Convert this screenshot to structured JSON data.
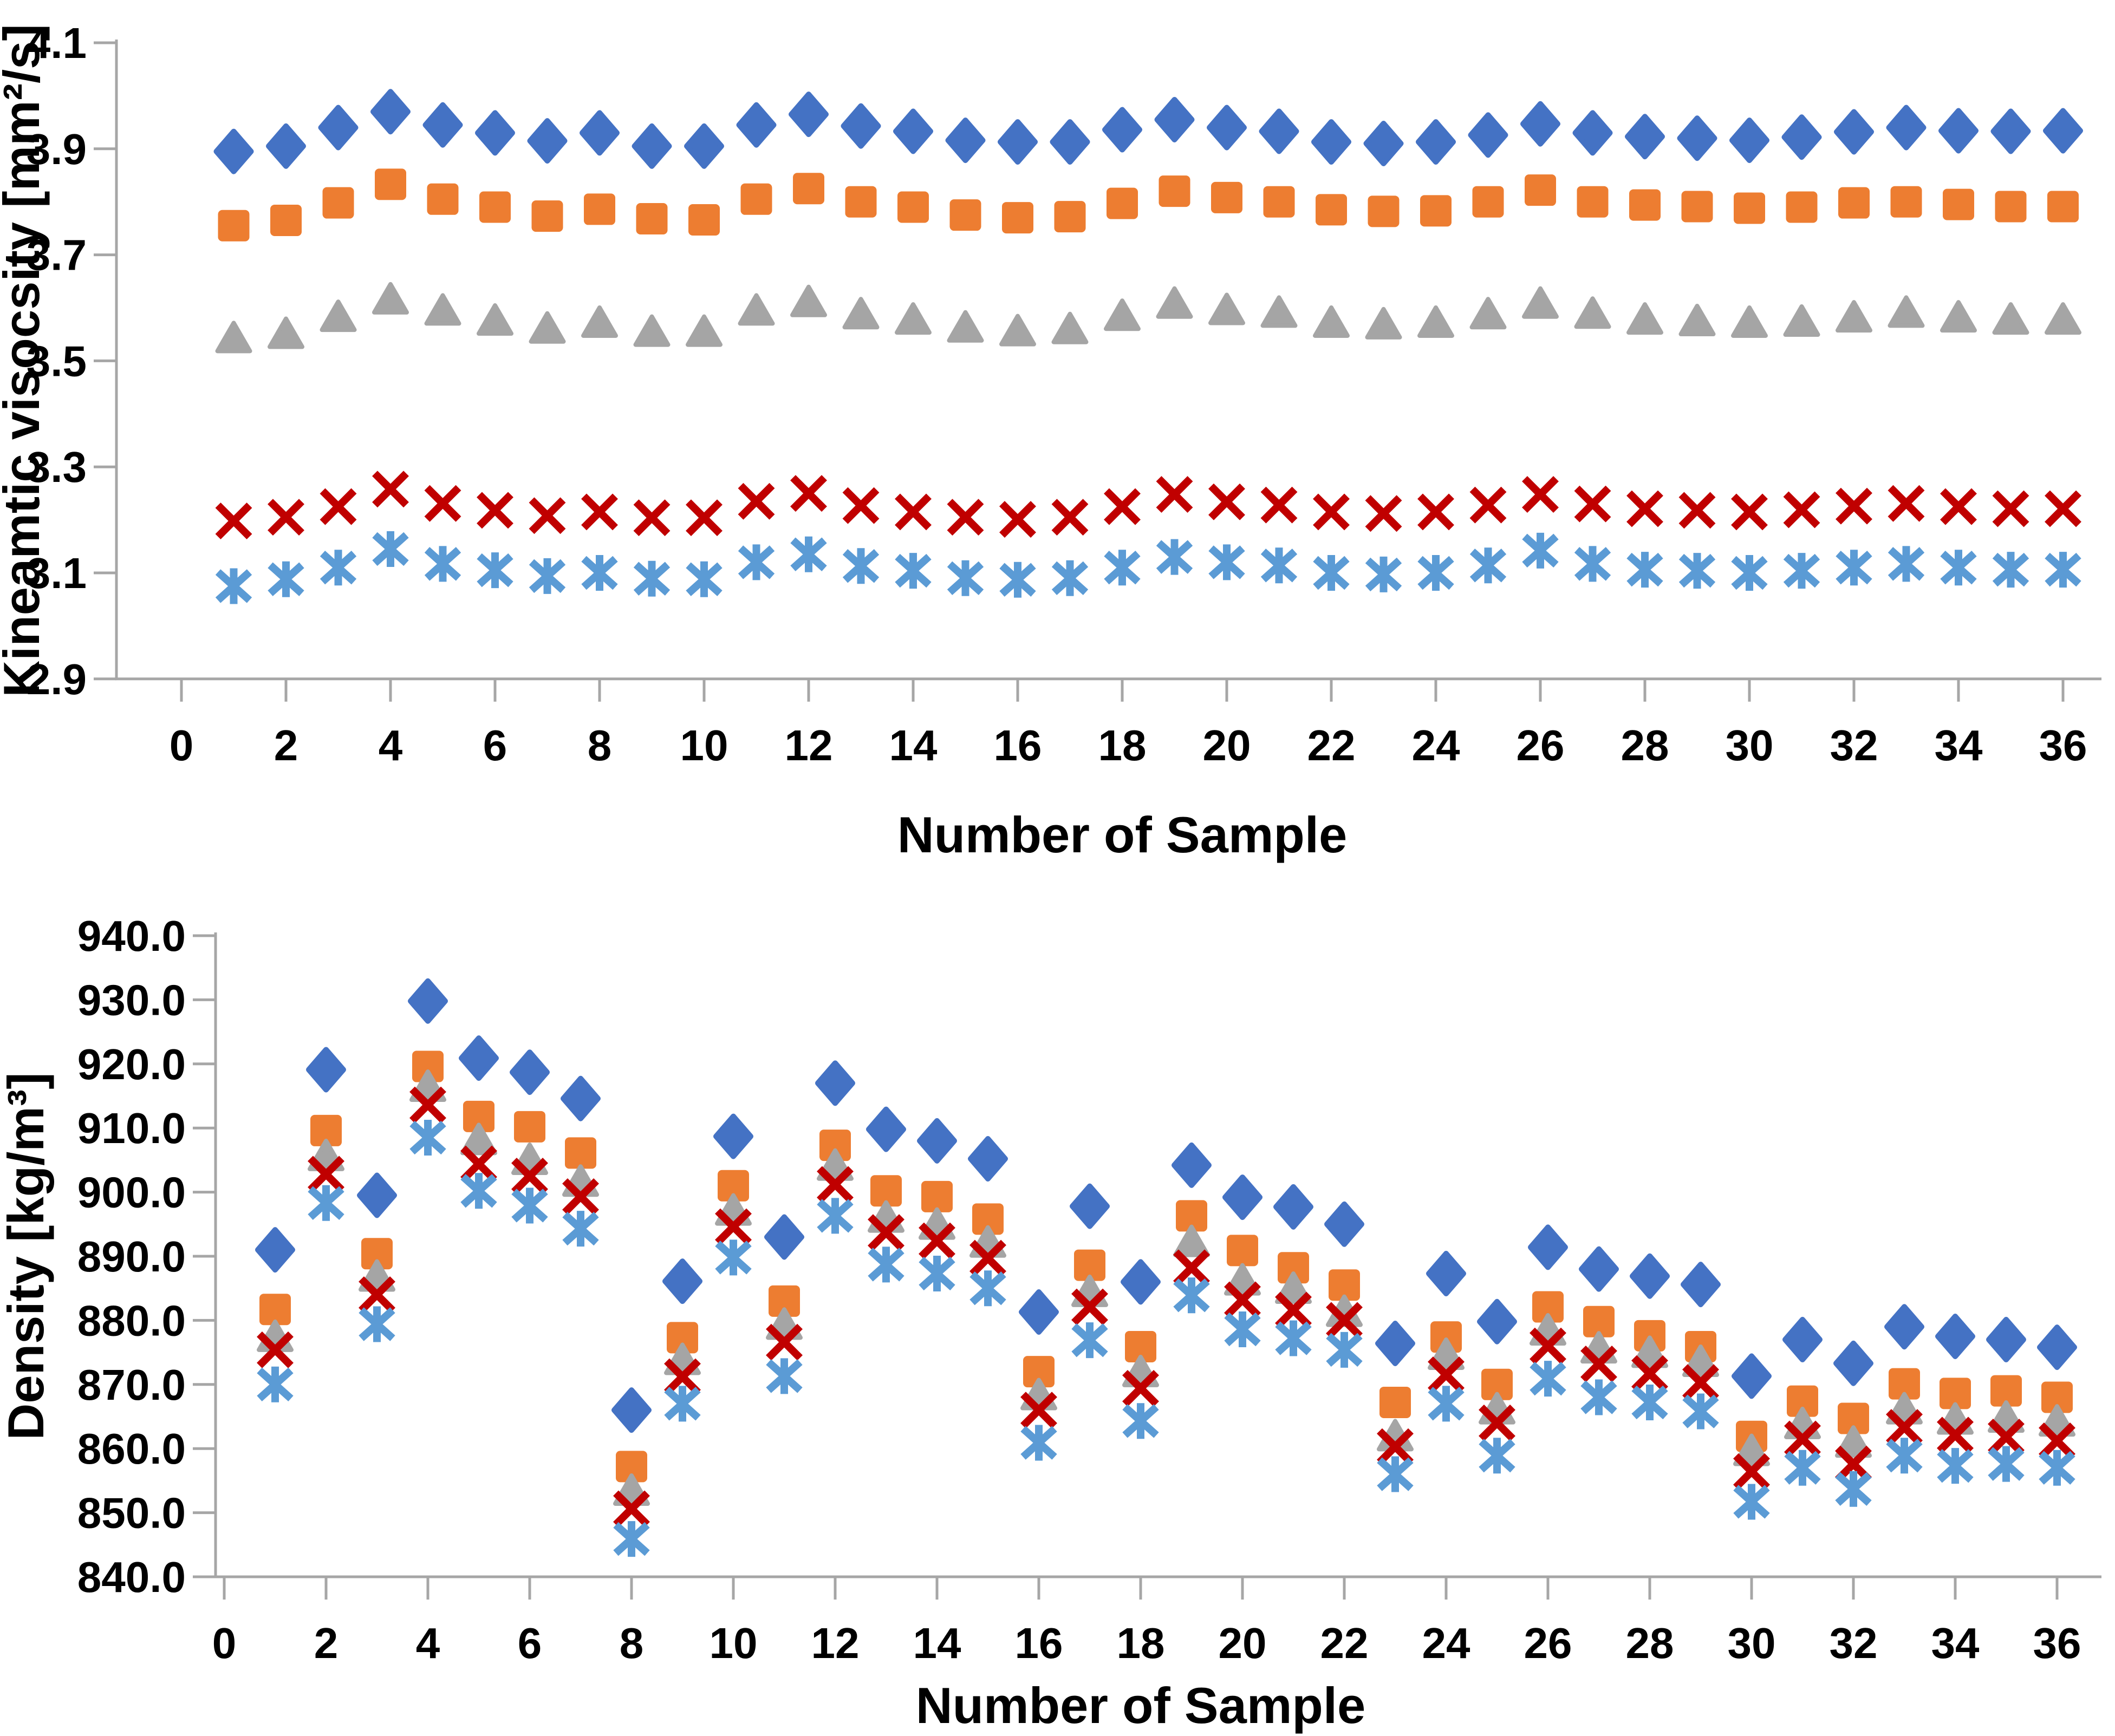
{
  "figure": {
    "background": "#FFFFFF",
    "axis_line_color": "#A6A6A6",
    "text_color": "#000000"
  },
  "chart_data": [
    {
      "type": "scatter",
      "title": "",
      "xlabel": "Number of Sample",
      "ylabel": "Kineamtic visocsity [mm²/s]",
      "xlim": [
        0,
        36
      ],
      "ylim": [
        2.9,
        4.1
      ],
      "grid": false,
      "legend": "none",
      "xtick_labels": [
        "0",
        "2",
        "4",
        "6",
        "8",
        "10",
        "12",
        "14",
        "16",
        "18",
        "20",
        "22",
        "24",
        "26",
        "28",
        "30",
        "32",
        "34",
        "36"
      ],
      "ytick_labels": [
        "4.1",
        "3.9",
        "3.7",
        "3.5",
        "3.3",
        "3.1",
        "2.9"
      ],
      "x": [
        1,
        2,
        3,
        4,
        5,
        6,
        7,
        8,
        9,
        10,
        11,
        12,
        13,
        14,
        15,
        16,
        17,
        18,
        19,
        20,
        21,
        22,
        23,
        24,
        25,
        26,
        27,
        28,
        29,
        30,
        31,
        32,
        33,
        34,
        35,
        36
      ],
      "series": [
        {
          "name": "diamond-blue",
          "marker": "diamond",
          "color": "#4472C4",
          "values": [
            3.895,
            3.905,
            3.94,
            3.97,
            3.945,
            3.93,
            3.915,
            3.93,
            3.905,
            3.905,
            3.945,
            3.965,
            3.943,
            3.933,
            3.916,
            3.913,
            3.913,
            3.936,
            3.955,
            3.94,
            3.933,
            3.913,
            3.91,
            3.913,
            3.926,
            3.947,
            3.93,
            3.923,
            3.92,
            3.916,
            3.922,
            3.932,
            3.94,
            3.934,
            3.933,
            3.934
          ]
        },
        {
          "name": "square-orange",
          "marker": "square",
          "color": "#ED7D31",
          "values": [
            3.755,
            3.765,
            3.798,
            3.833,
            3.805,
            3.79,
            3.773,
            3.786,
            3.768,
            3.766,
            3.805,
            3.825,
            3.8,
            3.79,
            3.775,
            3.77,
            3.772,
            3.797,
            3.82,
            3.808,
            3.8,
            3.785,
            3.782,
            3.783,
            3.8,
            3.822,
            3.8,
            3.794,
            3.791,
            3.788,
            3.79,
            3.798,
            3.8,
            3.795,
            3.791,
            3.791
          ]
        },
        {
          "name": "triangle-gray",
          "marker": "triangle",
          "color": "#A5A5A5",
          "values": [
            3.545,
            3.553,
            3.585,
            3.618,
            3.597,
            3.578,
            3.563,
            3.574,
            3.557,
            3.557,
            3.597,
            3.613,
            3.59,
            3.58,
            3.565,
            3.558,
            3.562,
            3.587,
            3.61,
            3.598,
            3.593,
            3.574,
            3.571,
            3.574,
            3.59,
            3.61,
            3.591,
            3.58,
            3.577,
            3.574,
            3.576,
            3.584,
            3.593,
            3.584,
            3.58,
            3.58
          ]
        },
        {
          "name": "x-dark-red",
          "marker": "x",
          "color": "#C00000",
          "values": [
            3.198,
            3.205,
            3.225,
            3.258,
            3.231,
            3.218,
            3.208,
            3.215,
            3.204,
            3.204,
            3.235,
            3.25,
            3.227,
            3.215,
            3.205,
            3.201,
            3.205,
            3.225,
            3.248,
            3.234,
            3.228,
            3.215,
            3.212,
            3.215,
            3.228,
            3.248,
            3.23,
            3.221,
            3.218,
            3.215,
            3.219,
            3.226,
            3.231,
            3.225,
            3.221,
            3.221
          ]
        },
        {
          "name": "asterisk-light-blue",
          "marker": "asterisk",
          "color": "#5B9BD5",
          "values": [
            3.075,
            3.088,
            3.11,
            3.145,
            3.117,
            3.105,
            3.094,
            3.1,
            3.089,
            3.088,
            3.12,
            3.135,
            3.113,
            3.104,
            3.09,
            3.087,
            3.09,
            3.11,
            3.13,
            3.12,
            3.114,
            3.1,
            3.097,
            3.1,
            3.114,
            3.142,
            3.117,
            3.106,
            3.104,
            3.1,
            3.104,
            3.11,
            3.117,
            3.11,
            3.106,
            3.106
          ]
        }
      ]
    },
    {
      "type": "scatter",
      "title": "",
      "xlabel": "Number of Sample",
      "ylabel": "Density [kg/m³]",
      "xlim": [
        0,
        36
      ],
      "ylim": [
        840,
        940
      ],
      "grid": false,
      "legend": "none",
      "xtick_labels": [
        "0",
        "2",
        "4",
        "6",
        "8",
        "10",
        "12",
        "14",
        "16",
        "18",
        "20",
        "22",
        "24",
        "26",
        "28",
        "30",
        "32",
        "34",
        "36"
      ],
      "ytick_labels": [
        "940.0",
        "930.0",
        "920.0",
        "910.0",
        "900.0",
        "890.0",
        "880.0",
        "870.0",
        "860.0",
        "850.0",
        "840.0"
      ],
      "x": [
        1,
        2,
        3,
        4,
        5,
        6,
        7,
        8,
        9,
        10,
        11,
        12,
        13,
        14,
        15,
        16,
        17,
        18,
        19,
        20,
        21,
        22,
        23,
        24,
        25,
        26,
        27,
        28,
        29,
        30,
        31,
        32,
        33,
        34,
        35,
        36
      ],
      "series": [
        {
          "name": "diamond-blue",
          "marker": "diamond",
          "color": "#4472C4",
          "values": [
            891.0,
            919.1,
            899.5,
            929.8,
            920.9,
            918.7,
            914.6,
            866.0,
            886.1,
            908.7,
            893.0,
            917.0,
            909.8,
            908.0,
            905.2,
            881.3,
            897.8,
            886.0,
            904.2,
            899.2,
            897.7,
            895.0,
            876.4,
            887.3,
            879.8,
            891.4,
            888.0,
            886.9,
            885.6,
            871.3,
            877.0,
            873.3,
            879.0,
            877.5,
            877.0,
            875.8
          ]
        },
        {
          "name": "square-orange",
          "marker": "square",
          "color": "#ED7D31",
          "values": [
            881.7,
            909.6,
            890.4,
            919.6,
            911.8,
            910.2,
            906.1,
            857.2,
            877.3,
            901.0,
            883.0,
            907.3,
            900.2,
            899.3,
            895.8,
            872.0,
            888.6,
            875.9,
            896.3,
            890.9,
            888.2,
            885.5,
            867.2,
            877.4,
            870.0,
            882.1,
            879.8,
            877.6,
            875.9,
            861.9,
            867.4,
            864.7,
            870.1,
            868.6,
            869.0,
            868.0
          ]
        },
        {
          "name": "triangle-gray",
          "marker": "triangle",
          "color": "#A5A5A5",
          "values": [
            877.6,
            905.8,
            887.0,
            916.6,
            908.3,
            905.2,
            901.8,
            853.6,
            874.0,
            897.3,
            879.5,
            904.3,
            896.2,
            895.1,
            892.3,
            868.5,
            884.6,
            872.1,
            892.4,
            886.4,
            885.1,
            881.5,
            862.1,
            874.8,
            866.3,
            878.6,
            875.8,
            875.1,
            873.7,
            859.8,
            864.0,
            861.1,
            866.3,
            864.7,
            865.0,
            864.4
          ]
        },
        {
          "name": "x-dark-red",
          "marker": "x",
          "color": "#C00000",
          "values": [
            875.4,
            902.8,
            884.0,
            913.6,
            904.4,
            902.5,
            899.3,
            850.6,
            871.2,
            894.6,
            876.6,
            901.2,
            893.7,
            892.4,
            889.7,
            866.0,
            882.1,
            869.4,
            888.2,
            883.2,
            881.6,
            880.0,
            860.3,
            871.5,
            864.0,
            876.0,
            873.2,
            871.7,
            870.3,
            856.4,
            861.5,
            857.6,
            863.3,
            862.1,
            861.8,
            861.2
          ]
        },
        {
          "name": "asterisk-light-blue",
          "marker": "asterisk",
          "color": "#5B9BD5",
          "values": [
            870.0,
            898.3,
            879.4,
            908.5,
            900.2,
            897.9,
            894.3,
            845.9,
            867.0,
            889.8,
            871.3,
            896.3,
            888.7,
            887.3,
            885.0,
            860.9,
            876.9,
            864.3,
            883.9,
            878.6,
            877.2,
            875.4,
            856.0,
            867.0,
            858.9,
            870.9,
            868.0,
            867.2,
            865.8,
            851.7,
            857.0,
            853.7,
            858.9,
            857.3,
            857.6,
            857.0
          ]
        }
      ]
    }
  ]
}
